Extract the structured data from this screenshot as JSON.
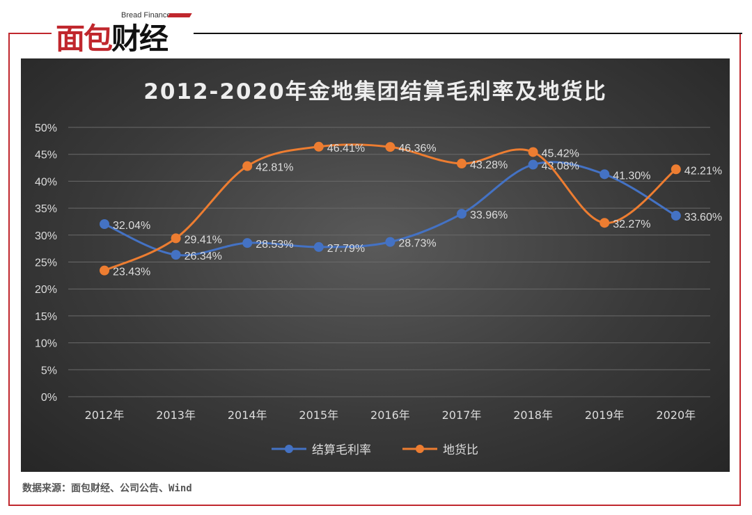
{
  "brand": {
    "logo_cn": "面包财经",
    "logo_en": "Bread Finance"
  },
  "source": "数据来源：面包财经、公司公告、Wind",
  "chart_data": {
    "type": "line",
    "title": "2012-2020年金地集团结算毛利率及地货比",
    "categories": [
      "2012年",
      "2013年",
      "2014年",
      "2015年",
      "2016年",
      "2017年",
      "2018年",
      "2019年",
      "2020年"
    ],
    "ylim": [
      0,
      50
    ],
    "yticks": [
      "0%",
      "5%",
      "10%",
      "15%",
      "20%",
      "25%",
      "30%",
      "35%",
      "40%",
      "45%",
      "50%"
    ],
    "grid": true,
    "legend": "bottom",
    "series": [
      {
        "name": "结算毛利率",
        "color": "#4472c4",
        "values": [
          32.04,
          26.34,
          28.53,
          27.79,
          28.73,
          33.96,
          43.08,
          41.3,
          33.6
        ],
        "labels": [
          "32.04%",
          "26.34%",
          "28.53%",
          "27.79%",
          "28.73%",
          "33.96%",
          "43.08%",
          "41.30%",
          "33.60%"
        ]
      },
      {
        "name": "地货比",
        "color": "#ed7d31",
        "values": [
          23.43,
          29.41,
          42.81,
          46.41,
          46.36,
          43.28,
          45.42,
          32.27,
          42.21
        ],
        "labels": [
          "23.43%",
          "29.41%",
          "42.81%",
          "46.41%",
          "46.36%",
          "43.28%",
          "45.42%",
          "32.27%",
          "42.21%"
        ]
      }
    ]
  }
}
